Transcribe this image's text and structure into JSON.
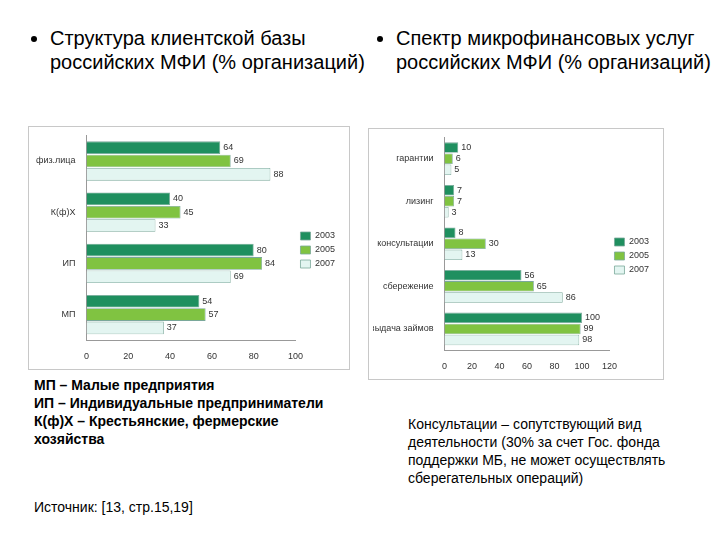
{
  "chart_data": [
    {
      "type": "bar",
      "orientation": "horizontal",
      "title": "Структура клиентской базы российских МФИ (% организаций)",
      "categories": [
        "физ.лица",
        "К(ф)Х",
        "ИП",
        "МП"
      ],
      "series": [
        {
          "name": "2003",
          "color": "#1f8f5f",
          "values": [
            64,
            40,
            80,
            54
          ]
        },
        {
          "name": "2005",
          "color": "#80c341",
          "values": [
            69,
            45,
            84,
            57
          ]
        },
        {
          "name": "2007",
          "color": "#e3f5f1",
          "values": [
            88,
            33,
            69,
            37
          ]
        }
      ],
      "xlim": [
        0,
        100
      ],
      "xticks": [
        0,
        20,
        40,
        60,
        80,
        100
      ],
      "grid": false,
      "legend": "right",
      "data_labels": true
    },
    {
      "type": "bar",
      "orientation": "horizontal",
      "title": "Спектр микрофинансовых услуг российских МФИ (% организаций)",
      "categories": [
        "гарантии",
        "лизинг",
        "консультации",
        "сбережение",
        "выдача займов"
      ],
      "series": [
        {
          "name": "2003",
          "color": "#1f8f5f",
          "values": [
            10,
            7,
            8,
            56,
            100
          ]
        },
        {
          "name": "2005",
          "color": "#80c341",
          "values": [
            6,
            7,
            30,
            65,
            99
          ]
        },
        {
          "name": "2007",
          "color": "#e3f5f1",
          "values": [
            5,
            3,
            13,
            86,
            98
          ]
        }
      ],
      "xlim": [
        0,
        120
      ],
      "xticks": [
        0,
        20,
        40,
        60,
        80,
        100,
        120
      ],
      "grid": false,
      "legend": "right",
      "data_labels": true
    }
  ],
  "abbreviations": [
    "МП – Малые предприятия",
    "ИП – Индивидуальные предприниматели",
    "К(ф)Х – Крестьянские, фермерские хозяйства"
  ],
  "note": "Консультации – сопутствующий вид деятельности (30% за счет Гос. фонда поддержки МБ, не может осуществлять сберегательных операций)",
  "source": "Источник: [13, стр.15,19]"
}
